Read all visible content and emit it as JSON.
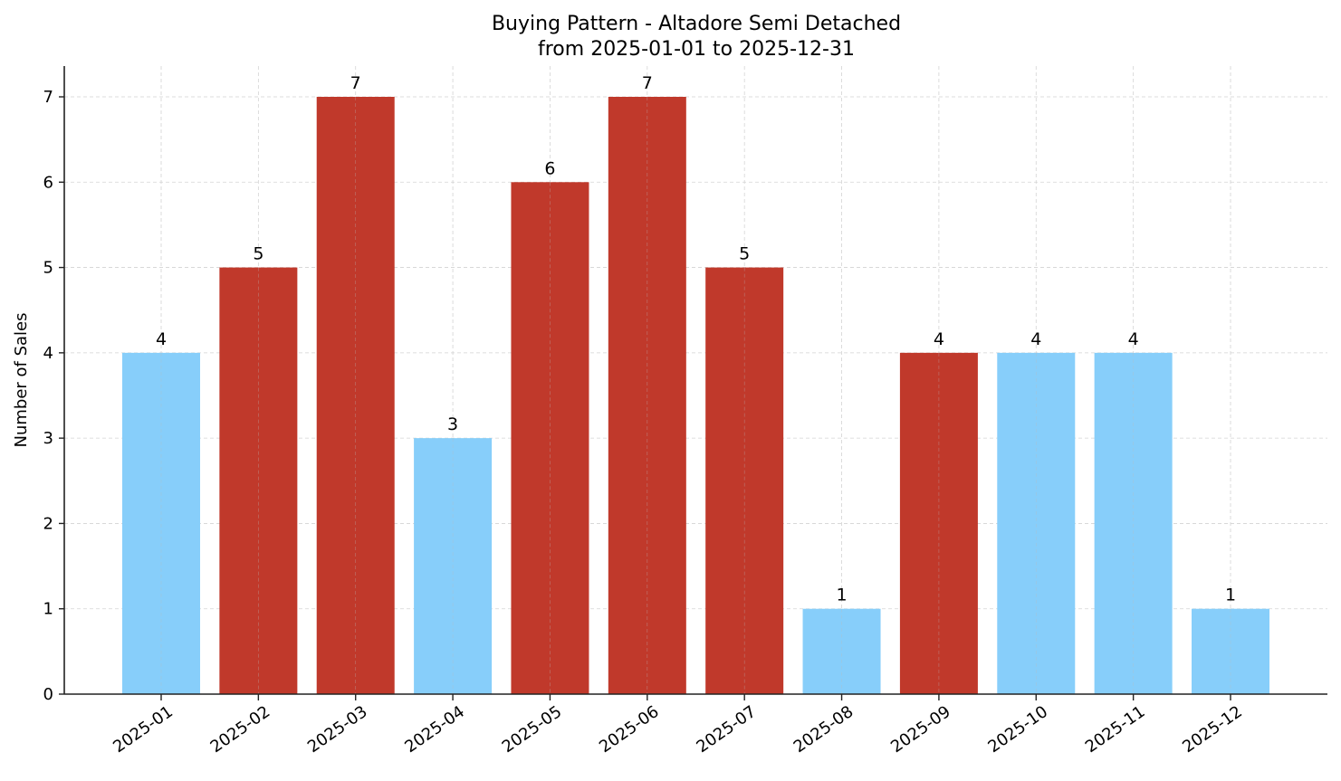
{
  "chart_data": {
    "type": "bar",
    "title": "Buying Pattern - Altadore Semi Detached",
    "subtitle": "from 2025-01-01 to 2025-12-31",
    "xlabel": "",
    "ylabel": "Number of Sales",
    "categories": [
      "2025-01",
      "2025-02",
      "2025-03",
      "2025-04",
      "2025-05",
      "2025-06",
      "2025-07",
      "2025-08",
      "2025-09",
      "2025-10",
      "2025-11",
      "2025-12"
    ],
    "values": [
      4,
      5,
      7,
      3,
      6,
      7,
      5,
      1,
      4,
      4,
      4,
      1
    ],
    "bar_colors": [
      "#87cefa",
      "#c0392b",
      "#c0392b",
      "#87cefa",
      "#c0392b",
      "#c0392b",
      "#c0392b",
      "#87cefa",
      "#c0392b",
      "#87cefa",
      "#87cefa",
      "#87cefa"
    ],
    "ylim": [
      0,
      7.35
    ],
    "yticks": [
      0,
      1,
      2,
      3,
      4,
      5,
      6,
      7
    ],
    "grid": true,
    "legend": null,
    "data_labels": true
  },
  "colors": {
    "high": "#c0392b",
    "low": "#87cefa",
    "grid": "#d3d3d3",
    "axis": "#222222"
  }
}
